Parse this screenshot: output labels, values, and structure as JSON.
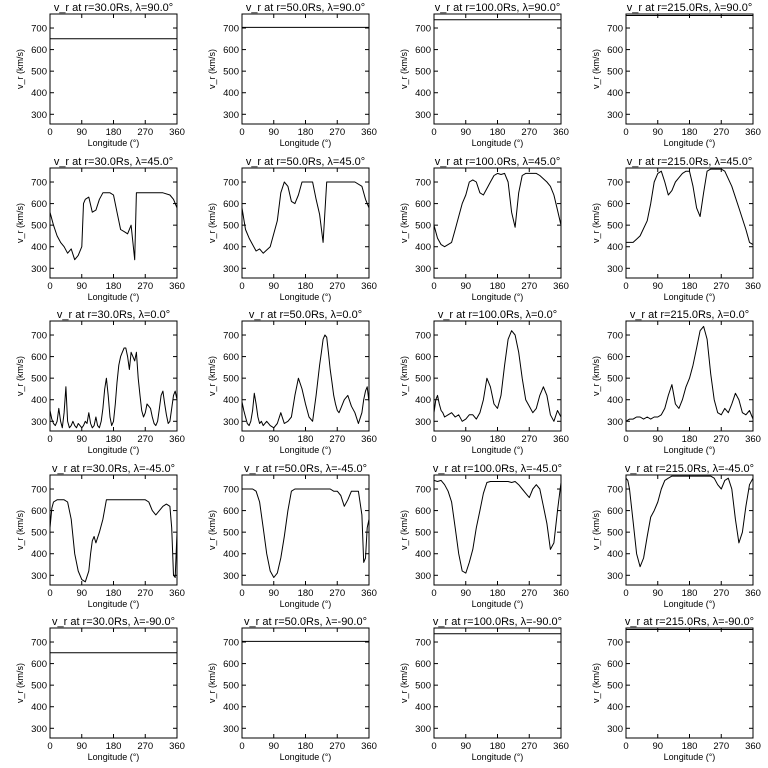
{
  "figure": {
    "xlabel": "Longitude (°)",
    "ylabel": "v_r (km/s)",
    "xticks": [
      "0",
      "90",
      "180",
      "270",
      "360"
    ],
    "yticks": [
      "300",
      "400",
      "500",
      "600",
      "700"
    ],
    "line_color": "#000000",
    "background": "#ffffff"
  },
  "chart_data": [
    {
      "type": "line",
      "title": "v_r at r=30.0Rs, λ=90.0°",
      "xlabel": "Longitude (°)",
      "ylabel": "v_r (km/s)",
      "xlim": [
        0,
        360
      ],
      "ylim": [
        255,
        765
      ],
      "grid": false,
      "x": [
        0,
        360
      ],
      "y": [
        650,
        650
      ]
    },
    {
      "type": "line",
      "title": "v_r at r=50.0Rs, λ=90.0°",
      "xlabel": "Longitude (°)",
      "ylabel": "v_r (km/s)",
      "xlim": [
        0,
        360
      ],
      "ylim": [
        255,
        765
      ],
      "grid": false,
      "x": [
        0,
        360
      ],
      "y": [
        703,
        703
      ]
    },
    {
      "type": "line",
      "title": "v_r at r=100.0Rs, λ=90.0°",
      "xlabel": "Longitude (°)",
      "ylabel": "v_r (km/s)",
      "xlim": [
        0,
        360
      ],
      "ylim": [
        255,
        765
      ],
      "grid": false,
      "x": [
        0,
        360
      ],
      "y": [
        738,
        738
      ]
    },
    {
      "type": "line",
      "title": "v_r at r=215.0Rs, λ=90.0°",
      "xlabel": "Longitude (°)",
      "ylabel": "v_r (km/s)",
      "xlim": [
        0,
        360
      ],
      "ylim": [
        255,
        765
      ],
      "grid": false,
      "x": [
        0,
        360
      ],
      "y": [
        758,
        758
      ]
    },
    {
      "type": "line",
      "title": "v_r at r=30.0Rs, λ=45.0°",
      "xlabel": "Longitude (°)",
      "ylabel": "v_r (km/s)",
      "xlim": [
        0,
        360
      ],
      "ylim": [
        255,
        765
      ],
      "grid": false,
      "x": [
        0,
        10,
        20,
        30,
        40,
        50,
        60,
        70,
        80,
        90,
        95,
        100,
        110,
        120,
        130,
        140,
        150,
        160,
        170,
        180,
        190,
        200,
        210,
        220,
        230,
        235,
        240,
        245,
        250,
        260,
        270,
        280,
        300,
        320,
        340,
        350,
        360
      ],
      "y": [
        560,
        500,
        450,
        420,
        400,
        370,
        390,
        340,
        360,
        400,
        600,
        620,
        630,
        560,
        570,
        620,
        650,
        650,
        650,
        640,
        560,
        480,
        470,
        460,
        500,
        420,
        340,
        650,
        650,
        650,
        650,
        650,
        650,
        650,
        640,
        620,
        580
      ]
    },
    {
      "type": "line",
      "title": "v_r at r=50.0Rs, λ=45.0°",
      "xlabel": "Longitude (°)",
      "ylabel": "v_r (km/s)",
      "xlim": [
        0,
        360
      ],
      "ylim": [
        255,
        765
      ],
      "grid": false,
      "x": [
        0,
        10,
        20,
        30,
        40,
        50,
        60,
        80,
        100,
        110,
        120,
        130,
        140,
        150,
        160,
        170,
        180,
        190,
        200,
        210,
        220,
        230,
        240,
        250,
        260,
        270,
        280,
        300,
        320,
        340,
        350,
        360
      ],
      "y": [
        580,
        480,
        440,
        410,
        380,
        390,
        370,
        400,
        520,
        650,
        700,
        680,
        610,
        600,
        640,
        700,
        700,
        700,
        700,
        620,
        550,
        420,
        700,
        700,
        700,
        700,
        700,
        700,
        700,
        680,
        620,
        580
      ]
    },
    {
      "type": "line",
      "title": "v_r at r=100.0Rs, λ=45.0°",
      "xlabel": "Longitude (°)",
      "ylabel": "v_r (km/s)",
      "xlim": [
        0,
        360
      ],
      "ylim": [
        255,
        765
      ],
      "grid": false,
      "x": [
        0,
        10,
        20,
        30,
        40,
        50,
        60,
        70,
        80,
        90,
        100,
        110,
        120,
        130,
        140,
        150,
        160,
        170,
        180,
        190,
        200,
        210,
        220,
        230,
        240,
        250,
        260,
        270,
        280,
        290,
        300,
        320,
        330,
        340,
        350,
        360
      ],
      "y": [
        500,
        440,
        410,
        400,
        410,
        420,
        480,
        540,
        600,
        640,
        700,
        710,
        700,
        650,
        640,
        670,
        700,
        730,
        740,
        735,
        740,
        700,
        560,
        490,
        650,
        730,
        740,
        740,
        740,
        740,
        730,
        700,
        680,
        640,
        570,
        500
      ]
    },
    {
      "type": "line",
      "title": "v_r at r=215.0Rs, λ=45.0°",
      "xlabel": "Longitude (°)",
      "ylabel": "v_r (km/s)",
      "xlim": [
        0,
        360
      ],
      "ylim": [
        255,
        765
      ],
      "grid": false,
      "x": [
        0,
        20,
        40,
        60,
        70,
        80,
        90,
        100,
        110,
        120,
        130,
        140,
        150,
        160,
        170,
        180,
        190,
        200,
        210,
        220,
        230,
        240,
        250,
        260,
        270,
        280,
        300,
        320,
        340,
        350,
        360
      ],
      "y": [
        420,
        420,
        450,
        520,
        600,
        700,
        740,
        750,
        700,
        640,
        660,
        700,
        720,
        740,
        750,
        750,
        680,
        580,
        540,
        650,
        750,
        760,
        760,
        760,
        760,
        750,
        680,
        580,
        480,
        420,
        410
      ]
    },
    {
      "type": "line",
      "title": "v_r at r=30.0Rs, λ=0.0°",
      "xlabel": "Longitude (°)",
      "ylabel": "v_r (km/s)",
      "xlim": [
        0,
        360
      ],
      "ylim": [
        255,
        765
      ],
      "grid": false,
      "x": [
        0,
        5,
        10,
        15,
        20,
        25,
        30,
        35,
        40,
        45,
        50,
        55,
        60,
        65,
        70,
        75,
        80,
        85,
        90,
        95,
        100,
        105,
        110,
        115,
        120,
        125,
        130,
        135,
        140,
        145,
        150,
        155,
        160,
        165,
        170,
        175,
        180,
        185,
        190,
        195,
        200,
        205,
        210,
        215,
        220,
        225,
        230,
        235,
        240,
        245,
        250,
        255,
        260,
        265,
        270,
        275,
        280,
        285,
        290,
        295,
        300,
        305,
        310,
        315,
        320,
        325,
        330,
        335,
        340,
        345,
        350,
        355,
        360
      ],
      "y": [
        350,
        310,
        290,
        280,
        300,
        360,
        300,
        270,
        340,
        460,
        300,
        270,
        280,
        300,
        280,
        270,
        290,
        280,
        270,
        280,
        300,
        290,
        340,
        290,
        270,
        280,
        320,
        280,
        270,
        300,
        360,
        450,
        500,
        420,
        320,
        280,
        300,
        380,
        480,
        560,
        600,
        620,
        640,
        640,
        600,
        540,
        620,
        600,
        580,
        620,
        500,
        420,
        350,
        320,
        340,
        380,
        370,
        360,
        320,
        290,
        280,
        300,
        360,
        420,
        440,
        380,
        330,
        290,
        300,
        360,
        420,
        440,
        400
      ]
    },
    {
      "type": "line",
      "title": "v_r at r=50.0Rs, λ=0.0°",
      "xlabel": "Longitude (°)",
      "ylabel": "v_r (km/s)",
      "xlim": [
        0,
        360
      ],
      "ylim": [
        255,
        765
      ],
      "grid": false,
      "x": [
        0,
        5,
        10,
        15,
        20,
        25,
        30,
        35,
        40,
        45,
        50,
        55,
        60,
        70,
        80,
        90,
        100,
        110,
        120,
        130,
        140,
        150,
        160,
        170,
        180,
        190,
        200,
        210,
        220,
        225,
        230,
        235,
        240,
        245,
        250,
        255,
        260,
        265,
        270,
        275,
        280,
        290,
        300,
        310,
        320,
        330,
        340,
        345,
        350,
        355,
        360
      ],
      "y": [
        390,
        350,
        320,
        290,
        280,
        300,
        350,
        430,
        380,
        320,
        290,
        300,
        280,
        300,
        280,
        270,
        290,
        340,
        290,
        300,
        320,
        420,
        500,
        450,
        380,
        320,
        300,
        420,
        560,
        620,
        680,
        700,
        690,
        620,
        540,
        480,
        420,
        380,
        350,
        340,
        360,
        400,
        420,
        370,
        340,
        290,
        340,
        400,
        440,
        460,
        390
      ]
    },
    {
      "type": "line",
      "title": "v_r at r=100.0Rs, λ=0.0°",
      "xlabel": "Longitude (°)",
      "ylabel": "v_r (km/s)",
      "xlim": [
        0,
        360
      ],
      "ylim": [
        255,
        765
      ],
      "grid": false,
      "x": [
        0,
        5,
        10,
        15,
        20,
        25,
        30,
        40,
        50,
        60,
        70,
        80,
        90,
        100,
        110,
        120,
        130,
        140,
        150,
        160,
        170,
        180,
        190,
        200,
        210,
        220,
        230,
        240,
        250,
        260,
        270,
        280,
        290,
        300,
        310,
        320,
        330,
        340,
        350,
        360
      ],
      "y": [
        340,
        400,
        420,
        380,
        350,
        340,
        320,
        330,
        340,
        320,
        330,
        300,
        310,
        330,
        330,
        310,
        340,
        400,
        500,
        460,
        380,
        360,
        420,
        560,
        680,
        720,
        700,
        620,
        500,
        400,
        370,
        340,
        360,
        420,
        460,
        420,
        330,
        300,
        350,
        320
      ]
    },
    {
      "type": "line",
      "title": "v_r at r=215.0Rs, λ=0.0°",
      "xlabel": "Longitude (°)",
      "ylabel": "v_r (km/s)",
      "xlim": [
        0,
        360
      ],
      "ylim": [
        255,
        765
      ],
      "grid": false,
      "x": [
        0,
        10,
        20,
        30,
        40,
        50,
        60,
        70,
        80,
        90,
        100,
        110,
        120,
        130,
        140,
        150,
        160,
        170,
        180,
        190,
        200,
        210,
        220,
        230,
        240,
        250,
        260,
        270,
        280,
        290,
        300,
        310,
        320,
        330,
        340,
        350,
        360
      ],
      "y": [
        300,
        310,
        310,
        320,
        320,
        310,
        320,
        310,
        320,
        320,
        330,
        360,
        420,
        470,
        380,
        360,
        400,
        460,
        500,
        560,
        640,
        720,
        740,
        680,
        520,
        400,
        340,
        330,
        360,
        340,
        380,
        430,
        400,
        340,
        330,
        350,
        310
      ]
    },
    {
      "type": "line",
      "title": "v_r at r=30.0Rs, λ=-45.0°",
      "xlabel": "Longitude (°)",
      "ylabel": "v_r (km/s)",
      "xlim": [
        0,
        360
      ],
      "ylim": [
        255,
        765
      ],
      "grid": false,
      "x": [
        0,
        5,
        10,
        20,
        30,
        40,
        50,
        60,
        70,
        80,
        90,
        100,
        110,
        115,
        120,
        125,
        130,
        140,
        150,
        160,
        170,
        180,
        190,
        200,
        210,
        220,
        230,
        240,
        250,
        260,
        270,
        280,
        290,
        300,
        310,
        320,
        330,
        340,
        345,
        350,
        355,
        360
      ],
      "y": [
        520,
        610,
        640,
        650,
        650,
        650,
        640,
        560,
        400,
        320,
        280,
        270,
        320,
        400,
        460,
        480,
        450,
        500,
        560,
        650,
        650,
        650,
        650,
        650,
        650,
        650,
        650,
        650,
        650,
        650,
        650,
        640,
        600,
        580,
        600,
        620,
        630,
        620,
        520,
        300,
        290,
        500
      ]
    },
    {
      "type": "line",
      "title": "v_r at r=50.0Rs, λ=-45.0°",
      "xlabel": "Longitude (°)",
      "ylabel": "v_r (km/s)",
      "xlim": [
        0,
        360
      ],
      "ylim": [
        255,
        765
      ],
      "grid": false,
      "x": [
        0,
        10,
        20,
        30,
        40,
        50,
        60,
        70,
        80,
        90,
        100,
        110,
        120,
        130,
        140,
        150,
        160,
        170,
        180,
        190,
        200,
        210,
        220,
        230,
        240,
        250,
        260,
        270,
        280,
        290,
        300,
        310,
        320,
        330,
        340,
        345,
        350,
        355,
        360
      ],
      "y": [
        700,
        700,
        700,
        700,
        690,
        640,
        520,
        400,
        320,
        290,
        310,
        380,
        480,
        600,
        690,
        700,
        700,
        700,
        700,
        700,
        700,
        700,
        700,
        700,
        700,
        700,
        690,
        690,
        670,
        620,
        650,
        690,
        690,
        690,
        580,
        360,
        380,
        520,
        560
      ]
    },
    {
      "type": "line",
      "title": "v_r at r=100.0Rs, λ=-45.0°",
      "xlabel": "Longitude (°)",
      "ylabel": "v_r (km/s)",
      "xlim": [
        0,
        360
      ],
      "ylim": [
        255,
        765
      ],
      "grid": false,
      "x": [
        0,
        10,
        20,
        30,
        40,
        50,
        60,
        70,
        80,
        90,
        100,
        110,
        120,
        130,
        140,
        150,
        160,
        170,
        180,
        190,
        200,
        210,
        220,
        230,
        240,
        250,
        260,
        270,
        280,
        290,
        300,
        310,
        320,
        330,
        340,
        350,
        360
      ],
      "y": [
        740,
        735,
        740,
        720,
        690,
        640,
        520,
        400,
        320,
        310,
        360,
        420,
        520,
        600,
        680,
        730,
        735,
        735,
        735,
        735,
        735,
        735,
        730,
        735,
        720,
        700,
        680,
        660,
        700,
        720,
        700,
        620,
        540,
        420,
        450,
        600,
        730
      ]
    },
    {
      "type": "line",
      "title": "v_r at r=215.0Rs, λ=-45.0°",
      "xlabel": "Longitude (°)",
      "ylabel": "v_r (km/s)",
      "xlim": [
        0,
        360
      ],
      "ylim": [
        255,
        765
      ],
      "grid": false,
      "x": [
        0,
        5,
        10,
        20,
        30,
        40,
        50,
        60,
        70,
        80,
        90,
        100,
        110,
        120,
        130,
        140,
        150,
        160,
        170,
        180,
        190,
        200,
        210,
        220,
        230,
        240,
        250,
        260,
        270,
        280,
        290,
        300,
        310,
        320,
        330,
        340,
        350,
        360
      ],
      "y": [
        750,
        740,
        700,
        550,
        400,
        340,
        380,
        480,
        570,
        600,
        640,
        700,
        740,
        750,
        760,
        760,
        760,
        760,
        760,
        760,
        760,
        760,
        760,
        760,
        760,
        760,
        750,
        720,
        700,
        740,
        750,
        700,
        560,
        450,
        500,
        620,
        720,
        750
      ]
    },
    {
      "type": "line",
      "title": "v_r at r=30.0Rs, λ=-90.0°",
      "xlabel": "Longitude (°)",
      "ylabel": "v_r (km/s)",
      "xlim": [
        0,
        360
      ],
      "ylim": [
        255,
        765
      ],
      "grid": false,
      "x": [
        0,
        360
      ],
      "y": [
        650,
        650
      ]
    },
    {
      "type": "line",
      "title": "v_r at r=50.0Rs, λ=-90.0°",
      "xlabel": "Longitude (°)",
      "ylabel": "v_r (km/s)",
      "xlim": [
        0,
        360
      ],
      "ylim": [
        255,
        765
      ],
      "grid": false,
      "x": [
        0,
        360
      ],
      "y": [
        703,
        703
      ]
    },
    {
      "type": "line",
      "title": "v_r at r=100.0Rs, λ=-90.0°",
      "xlabel": "Longitude (°)",
      "ylabel": "v_r (km/s)",
      "xlim": [
        0,
        360
      ],
      "ylim": [
        255,
        765
      ],
      "grid": false,
      "x": [
        0,
        360
      ],
      "y": [
        738,
        738
      ]
    },
    {
      "type": "line",
      "title": "v_r at r=215.0Rs, λ=-90.0°",
      "xlabel": "Longitude (°)",
      "ylabel": "v_r (km/s)",
      "xlim": [
        0,
        360
      ],
      "ylim": [
        255,
        765
      ],
      "grid": false,
      "x": [
        0,
        360
      ],
      "y": [
        758,
        758
      ]
    }
  ]
}
